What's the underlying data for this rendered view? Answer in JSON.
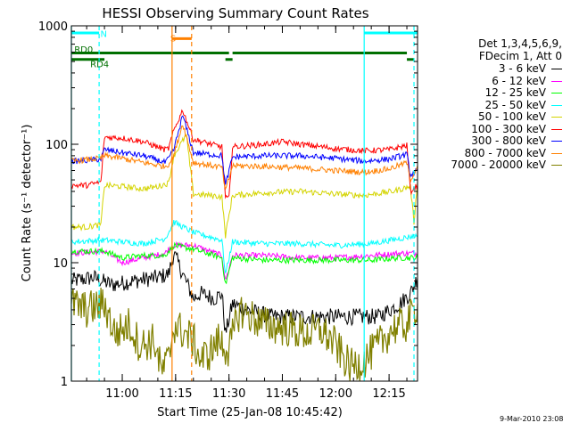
{
  "chart_data": {
    "type": "line",
    "title": "HESSI Observing Summary Count Rates",
    "xlabel": "Start Time (25-Jan-08 10:45:42)",
    "ylabel": "Count Rate (s⁻¹ detector⁻¹)",
    "yscale": "log",
    "ylim": [
      1,
      1000
    ],
    "xlim": [
      "10:45:42",
      "12:23:00"
    ],
    "grid": false,
    "x_ticks": [
      "11:00",
      "11:15",
      "11:30",
      "11:45",
      "12:00",
      "12:15"
    ],
    "y_ticks": [
      "1",
      "10",
      "100",
      "1000"
    ],
    "legend": {
      "placement": "right",
      "header": [
        "Det 1,3,4,5,6,9,",
        "FDecim 1, Att 0"
      ],
      "entries": [
        {
          "label": "3 - 6 keV",
          "color": "#000000"
        },
        {
          "label": "6 - 12 keV",
          "color": "#ff00ff"
        },
        {
          "label": "12 - 25 keV",
          "color": "#00ff00"
        },
        {
          "label": "25 - 50 keV",
          "color": "#00ffff"
        },
        {
          "label": "50 - 100 keV",
          "color": "#d4d400"
        },
        {
          "label": "100 - 300 keV",
          "color": "#ff0000"
        },
        {
          "label": "300 - 800 keV",
          "color": "#0000ff"
        },
        {
          "label": "800 - 7000 keV",
          "color": "#ff8000"
        },
        {
          "label": "7000 - 20000 keV",
          "color": "#808000"
        }
      ]
    },
    "series": [
      {
        "name": "3 - 6 keV",
        "color": "#000000",
        "points": [
          [
            "10:45:42",
            7
          ],
          [
            "10:52",
            7.5
          ],
          [
            "10:57",
            6.5
          ],
          [
            "11:03",
            7
          ],
          [
            "11:10",
            7.5
          ],
          [
            "11:13",
            8
          ],
          [
            "11:14:30",
            12
          ],
          [
            "11:20",
            5
          ],
          [
            "11:22",
            5.5
          ],
          [
            "11:26",
            5
          ],
          [
            "11:28",
            5.5
          ],
          [
            "11:29",
            2.5
          ],
          [
            "11:31",
            4.5
          ],
          [
            "11:35",
            4
          ],
          [
            "11:42",
            3.5
          ],
          [
            "11:50",
            3.5
          ],
          [
            "11:58",
            3.5
          ],
          [
            "12:05",
            3.5
          ],
          [
            "12:12",
            3.5
          ],
          [
            "12:18",
            4.5
          ],
          [
            "12:21",
            5.5
          ],
          [
            "12:23",
            7.5
          ]
        ]
      },
      {
        "name": "6 - 12 keV",
        "color": "#ff00ff",
        "points": [
          [
            "10:45:42",
            12
          ],
          [
            "10:55",
            12.5
          ],
          [
            "11:00",
            10
          ],
          [
            "11:06",
            11
          ],
          [
            "11:12",
            12
          ],
          [
            "11:13",
            13
          ],
          [
            "11:14:30",
            14
          ],
          [
            "11:20",
            14
          ],
          [
            "11:28",
            11.5
          ],
          [
            "11:29",
            7
          ],
          [
            "11:31",
            11.5
          ],
          [
            "11:40",
            11.5
          ],
          [
            "11:50",
            11
          ],
          [
            "12:00",
            11
          ],
          [
            "12:10",
            11.5
          ],
          [
            "12:18",
            12
          ],
          [
            "12:23",
            12
          ]
        ]
      },
      {
        "name": "12 - 25 keV",
        "color": "#00ff00",
        "points": [
          [
            "10:45:42",
            12.5
          ],
          [
            "10:55",
            12.5
          ],
          [
            "11:00",
            11
          ],
          [
            "11:06",
            11.5
          ],
          [
            "11:12",
            11.5
          ],
          [
            "11:13",
            12.5
          ],
          [
            "11:14:30",
            14
          ],
          [
            "11:20",
            13
          ],
          [
            "11:28",
            11
          ],
          [
            "11:29",
            6.5
          ],
          [
            "11:31",
            11
          ],
          [
            "11:40",
            10.5
          ],
          [
            "11:50",
            10.5
          ],
          [
            "12:00",
            10.5
          ],
          [
            "12:10",
            10.5
          ],
          [
            "12:18",
            11
          ],
          [
            "12:23",
            11
          ]
        ]
      },
      {
        "name": "25 - 50 keV",
        "color": "#00ffff",
        "points": [
          [
            "10:45:42",
            15
          ],
          [
            "10:55",
            15.5
          ],
          [
            "11:00",
            15
          ],
          [
            "11:06",
            14.5
          ],
          [
            "11:12",
            16
          ],
          [
            "11:13",
            18
          ],
          [
            "11:14:30",
            22
          ],
          [
            "11:20",
            18
          ],
          [
            "11:28",
            15.5
          ],
          [
            "11:29",
            8
          ],
          [
            "11:31",
            15
          ],
          [
            "11:40",
            14.5
          ],
          [
            "11:50",
            14.5
          ],
          [
            "12:00",
            14
          ],
          [
            "12:10",
            14.5
          ],
          [
            "12:18",
            16
          ],
          [
            "12:23",
            17
          ]
        ]
      },
      {
        "name": "50 - 100 keV",
        "color": "#d4d400",
        "points": [
          [
            "10:45:42",
            20
          ],
          [
            "10:50",
            20
          ],
          [
            "10:54",
            21
          ],
          [
            "10:55",
            45
          ],
          [
            "11:00",
            44
          ],
          [
            "11:06",
            42
          ],
          [
            "11:10",
            44
          ],
          [
            "11:13",
            47
          ],
          [
            "11:14:30",
            80
          ],
          [
            "11:18",
            120
          ],
          [
            "11:20",
            38
          ],
          [
            "11:25",
            37
          ],
          [
            "11:28",
            36
          ],
          [
            "11:29",
            17
          ],
          [
            "11:31",
            37
          ],
          [
            "11:40",
            39
          ],
          [
            "11:50",
            40
          ],
          [
            "12:00",
            38
          ],
          [
            "12:08",
            37
          ],
          [
            "12:16",
            40
          ],
          [
            "12:21",
            44
          ],
          [
            "12:22",
            22
          ],
          [
            "12:23",
            48
          ]
        ]
      },
      {
        "name": "100 - 300 keV",
        "color": "#ff0000",
        "points": [
          [
            "10:45:42",
            45
          ],
          [
            "10:50",
            45
          ],
          [
            "10:54",
            48
          ],
          [
            "10:55",
            115
          ],
          [
            "11:00",
            113
          ],
          [
            "11:06",
            105
          ],
          [
            "11:12",
            90
          ],
          [
            "11:13",
            92
          ],
          [
            "11:14:30",
            130
          ],
          [
            "11:17",
            195
          ],
          [
            "11:20",
            110
          ],
          [
            "11:25",
            100
          ],
          [
            "11:28",
            95
          ],
          [
            "11:29",
            35
          ],
          [
            "11:30",
            35
          ],
          [
            "11:31",
            95
          ],
          [
            "11:40",
            100
          ],
          [
            "11:45",
            105
          ],
          [
            "11:50",
            100
          ],
          [
            "12:00",
            92
          ],
          [
            "12:08",
            88
          ],
          [
            "12:15",
            90
          ],
          [
            "12:20",
            98
          ],
          [
            "12:21",
            40
          ],
          [
            "12:23",
            45
          ]
        ]
      },
      {
        "name": "300 - 800 keV",
        "color": "#0000ff",
        "points": [
          [
            "10:45:42",
            72
          ],
          [
            "10:50",
            73
          ],
          [
            "10:54",
            75
          ],
          [
            "10:55",
            90
          ],
          [
            "11:00",
            85
          ],
          [
            "11:06",
            80
          ],
          [
            "11:12",
            70
          ],
          [
            "11:13",
            75
          ],
          [
            "11:14:30",
            90
          ],
          [
            "11:17",
            175
          ],
          [
            "11:20",
            85
          ],
          [
            "11:28",
            80
          ],
          [
            "11:29",
            45
          ],
          [
            "11:31",
            78
          ],
          [
            "11:40",
            80
          ],
          [
            "11:50",
            80
          ],
          [
            "12:00",
            76
          ],
          [
            "12:08",
            72
          ],
          [
            "12:15",
            75
          ],
          [
            "12:20",
            82
          ],
          [
            "12:21",
            55
          ],
          [
            "12:23",
            60
          ]
        ]
      },
      {
        "name": "800 - 7000 keV",
        "color": "#ff8000",
        "points": [
          [
            "10:45:42",
            72
          ],
          [
            "10:50",
            74
          ],
          [
            "10:54",
            76
          ],
          [
            "10:55",
            80
          ],
          [
            "11:00",
            76
          ],
          [
            "11:06",
            70
          ],
          [
            "11:12",
            65
          ],
          [
            "11:13",
            68
          ],
          [
            "11:14:30",
            80
          ],
          [
            "11:17",
            150
          ],
          [
            "11:20",
            70
          ],
          [
            "11:28",
            64
          ],
          [
            "11:29",
            40
          ],
          [
            "11:31",
            66
          ],
          [
            "11:40",
            65
          ],
          [
            "11:50",
            63
          ],
          [
            "12:00",
            60
          ],
          [
            "12:08",
            58
          ],
          [
            "12:15",
            62
          ],
          [
            "12:20",
            70
          ],
          [
            "12:21",
            50
          ],
          [
            "12:23",
            66
          ]
        ]
      },
      {
        "name": "7000 - 20000 keV",
        "color": "#808000",
        "points": [
          [
            "10:45:42",
            4.5
          ],
          [
            "10:50",
            4
          ],
          [
            "10:55",
            4.5
          ],
          [
            "10:58",
            2.5
          ],
          [
            "11:02",
            3
          ],
          [
            "11:05",
            2
          ],
          [
            "11:09",
            2.2
          ],
          [
            "11:11",
            1.2
          ],
          [
            "11:13",
            1.5
          ],
          [
            "11:14:30",
            3
          ],
          [
            "11:20",
            2.2
          ],
          [
            "11:22",
            1.5
          ],
          [
            "11:25",
            1.8
          ],
          [
            "11:27",
            2.2
          ],
          [
            "11:30",
            1.8
          ],
          [
            "11:33",
            4
          ],
          [
            "11:40",
            3
          ],
          [
            "11:46",
            2.8
          ],
          [
            "11:52",
            2.5
          ],
          [
            "11:56",
            2.7
          ],
          [
            "12:00",
            2
          ],
          [
            "12:04",
            1.3
          ],
          [
            "12:08",
            1.5
          ],
          [
            "12:12",
            2
          ],
          [
            "12:16",
            2.8
          ],
          [
            "12:20",
            3
          ],
          [
            "12:23",
            4.5
          ]
        ]
      }
    ],
    "annotations": [
      {
        "label": "N",
        "color": "#00ffff"
      },
      {
        "label": "S",
        "color": "#ff8000"
      },
      {
        "label": "RD0",
        "color": "#007000"
      },
      {
        "label": "RD4",
        "color": "#007000"
      }
    ],
    "flag_bars": [
      {
        "name": "N",
        "color": "#00ffff",
        "level": 870,
        "intervals": [
          [
            "10:45:42",
            "10:53:30"
          ],
          [
            "12:08",
            "12:23"
          ]
        ]
      },
      {
        "name": "S",
        "color": "#ff8000",
        "level": 780,
        "intervals": [
          [
            "11:14",
            "11:19:30"
          ]
        ]
      },
      {
        "name": "RD0",
        "color": "#007000",
        "level": 590,
        "intervals": [
          [
            "10:45:42",
            "11:30"
          ],
          [
            "11:31",
            "12:20"
          ]
        ]
      },
      {
        "name": "RD4",
        "color": "#007000",
        "level": 520,
        "intervals": [
          [
            "10:45:42",
            "10:55"
          ],
          [
            "11:29",
            "11:31"
          ],
          [
            "12:20",
            "12:22"
          ]
        ]
      }
    ],
    "markers": [
      {
        "time": "10:45:42",
        "color": "#00ffff",
        "style": "solid"
      },
      {
        "time": "10:53:30",
        "color": "#00ffff",
        "style": "dashed"
      },
      {
        "time": "11:14",
        "color": "#ff8000",
        "style": "solid"
      },
      {
        "time": "11:19:30",
        "color": "#ff8000",
        "style": "dashed"
      },
      {
        "time": "12:08",
        "color": "#00ffff",
        "style": "solid"
      },
      {
        "time": "12:22",
        "color": "#00ffff",
        "style": "dashed"
      }
    ],
    "timestamp": "9-Mar-2010 23:08"
  }
}
